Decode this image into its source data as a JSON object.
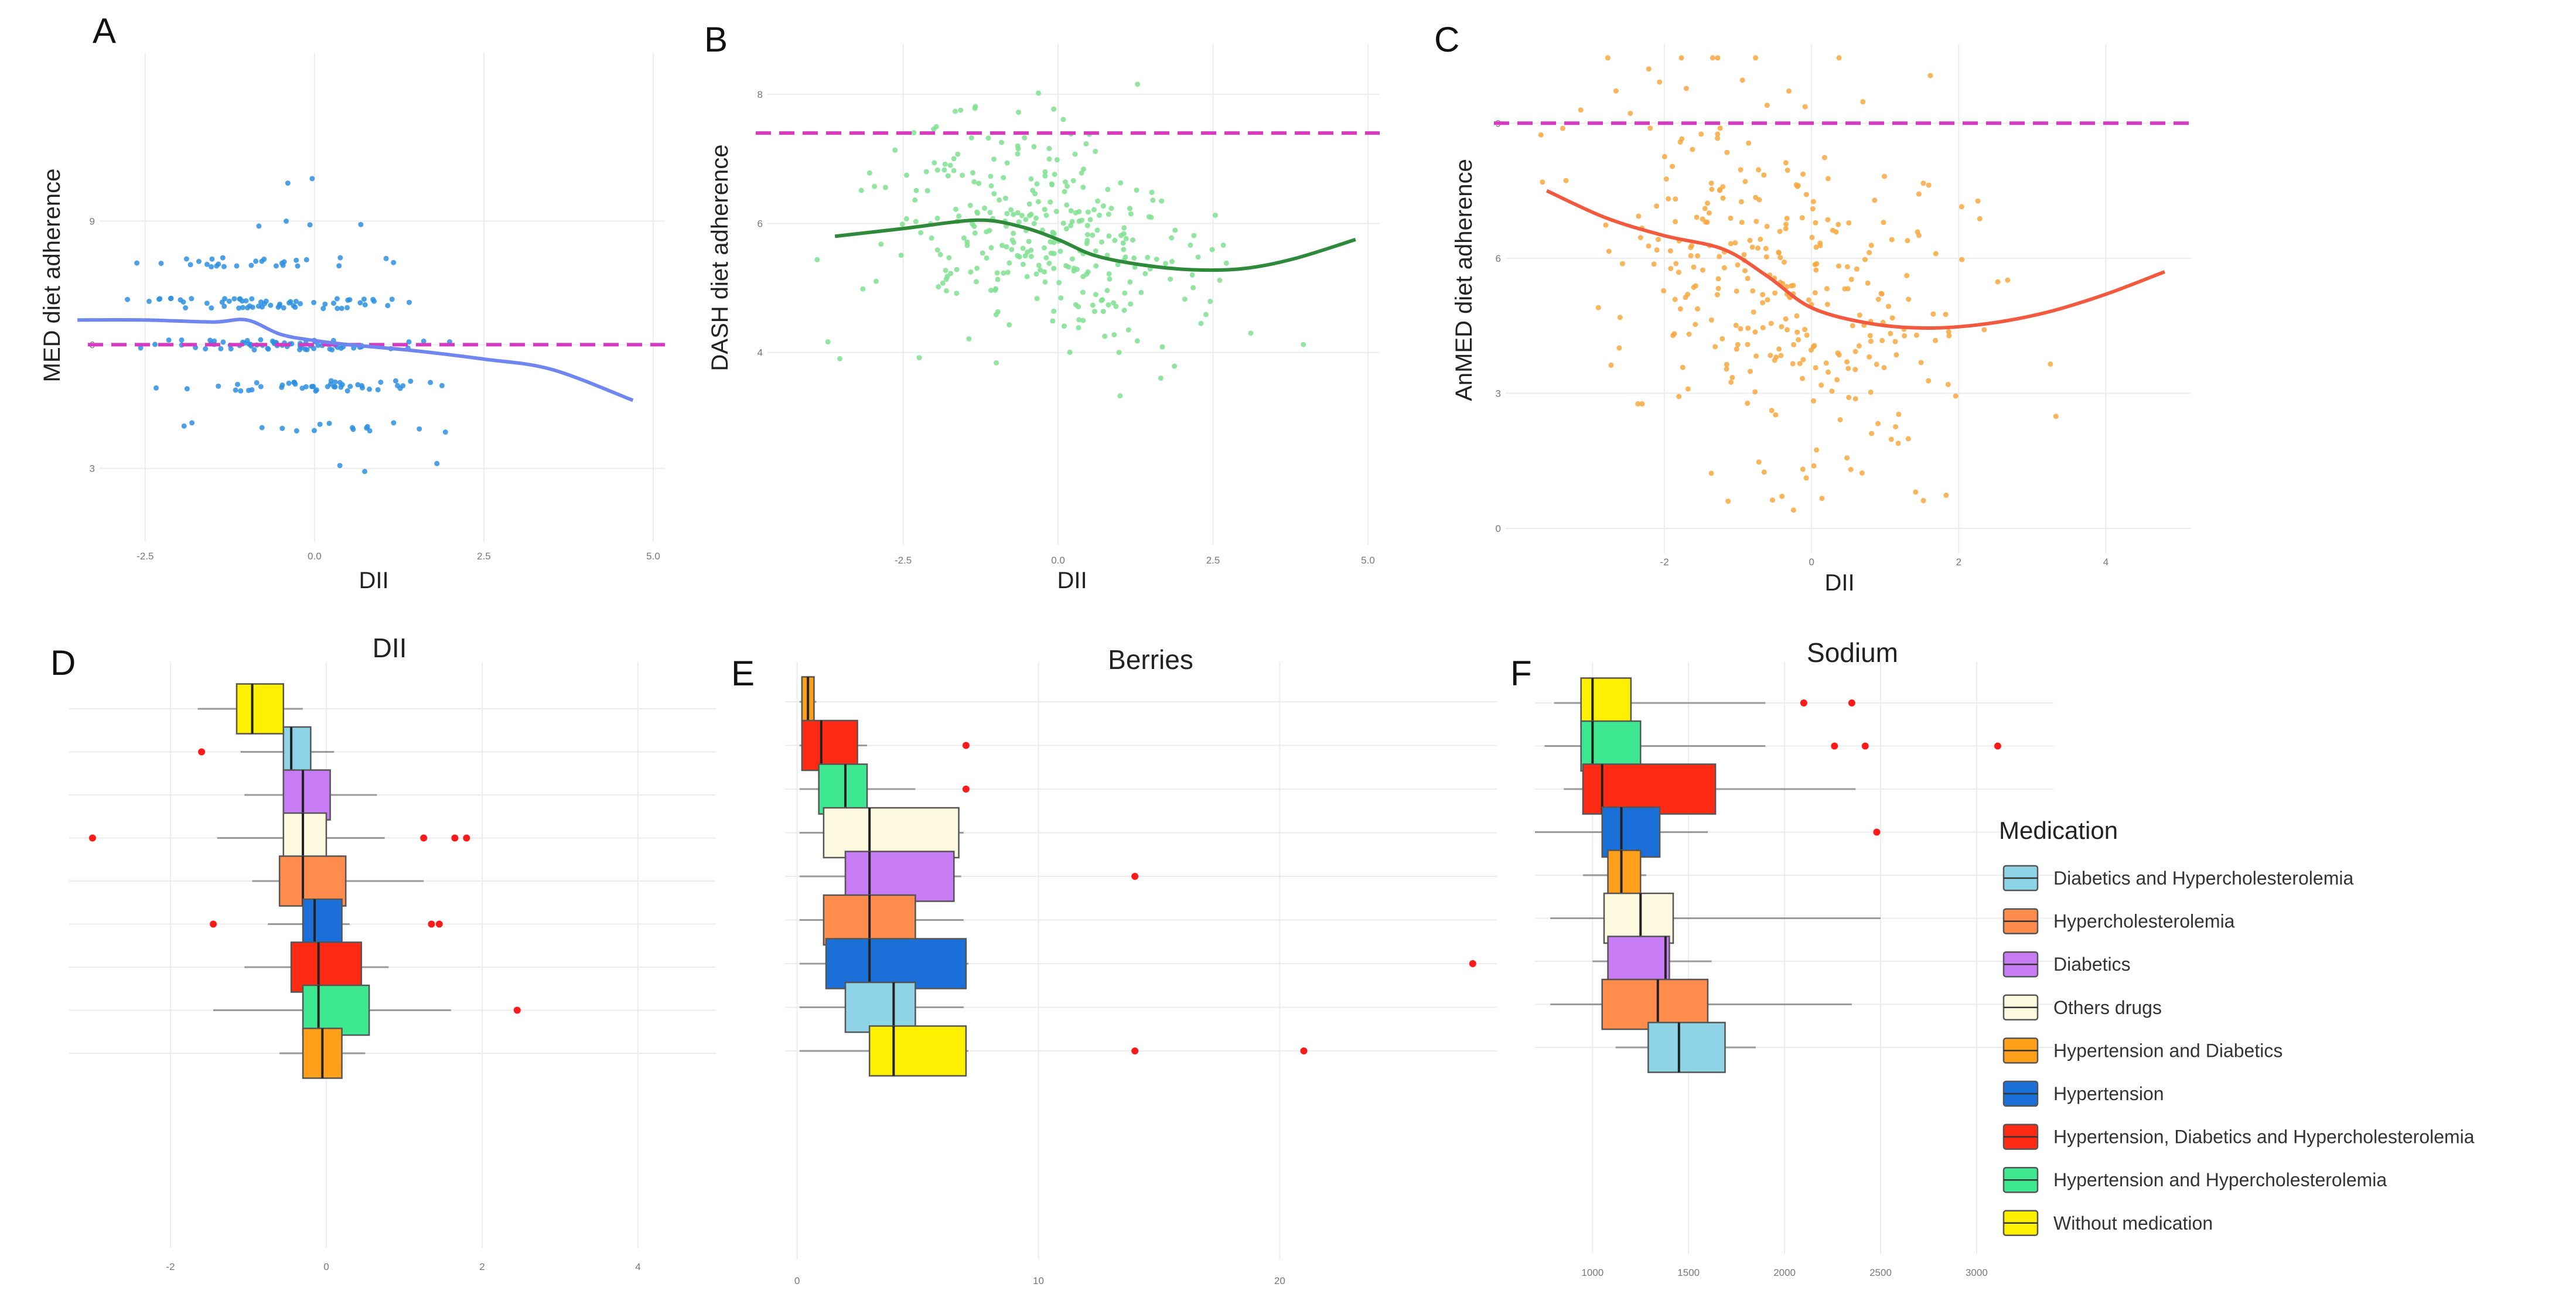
{
  "colors": {
    "ref_line": "#d63ac0",
    "A_point": "#2d8fe0",
    "A_curve": "#6f86f0",
    "B_point": "#7fe08f",
    "B_curve": "#2e8a3a",
    "C_point": "#f7a840",
    "C_curve": "#f25a3f",
    "outlier": "#ff1a1a",
    "whisker": "#9a9a9a",
    "median": "#222222"
  },
  "chart_data": [
    {
      "id": "A",
      "type": "scatter",
      "panel_letter": "A",
      "xlabel": "DII",
      "ylabel": "MED diet adherence",
      "xlim": [
        -3.0,
        5.0
      ],
      "ylim": [
        1.5,
        12.8
      ],
      "xticks": [
        -2.5,
        0.0,
        2.5,
        5.0
      ],
      "xtick_labels": [
        "-2.5",
        "0.0",
        "2.5",
        "5.0"
      ],
      "yticks": [
        3,
        6,
        9
      ],
      "ytick_labels": [
        "3",
        "6",
        "9"
      ],
      "ref_line": 6.0,
      "point_count": 230,
      "smooth_x": [
        -3.5,
        -2.5,
        -1.5,
        -1.0,
        -0.5,
        0.0,
        0.5,
        1.5,
        2.5,
        3.5,
        4.7
      ],
      "smooth_y": [
        6.6,
        6.6,
        6.55,
        6.6,
        6.25,
        6.1,
        6.0,
        5.85,
        5.65,
        5.4,
        4.65
      ]
    },
    {
      "id": "B",
      "type": "scatter",
      "panel_letter": "B",
      "xlabel": "DII",
      "ylabel": "DASH diet adherence",
      "xlim": [
        -4.5,
        5.0
      ],
      "ylim": [
        1.2,
        8.6
      ],
      "xticks": [
        -2.5,
        0.0,
        2.5,
        5.0
      ],
      "xtick_labels": [
        "-2.5",
        "0.0",
        "2.5",
        "5.0"
      ],
      "yticks": [
        4,
        6,
        8
      ],
      "ytick_labels": [
        "4",
        "6",
        "8"
      ],
      "ref_line": 7.4,
      "point_count": 320,
      "smooth_x": [
        -3.6,
        -2.5,
        -1.3,
        -0.6,
        0.0,
        0.6,
        1.4,
        2.2,
        3.0,
        3.8,
        4.8
      ],
      "smooth_y": [
        5.8,
        5.92,
        6.05,
        5.95,
        5.75,
        5.5,
        5.35,
        5.28,
        5.3,
        5.45,
        5.75
      ]
    },
    {
      "id": "C",
      "type": "scatter",
      "panel_letter": "C",
      "xlabel": "DII",
      "ylabel": "AnMED diet adherence",
      "xlim": [
        -4.0,
        5.0
      ],
      "ylim": [
        -0.3,
        10.5
      ],
      "xticks": [
        -2,
        0,
        2,
        4
      ],
      "xtick_labels": [
        "-2",
        "0",
        "2",
        "4"
      ],
      "yticks": [
        0,
        3,
        6,
        9
      ],
      "ytick_labels": [
        "0",
        "3",
        "6",
        "9"
      ],
      "ref_line": 9.0,
      "point_count": 330,
      "smooth_x": [
        -3.6,
        -2.8,
        -2.0,
        -1.2,
        -0.6,
        0.0,
        0.8,
        1.6,
        2.4,
        3.2,
        4.0,
        4.8
      ],
      "smooth_y": [
        7.5,
        6.9,
        6.5,
        6.2,
        5.6,
        4.9,
        4.55,
        4.45,
        4.55,
        4.8,
        5.2,
        5.7
      ]
    },
    {
      "id": "D",
      "type": "boxplot",
      "panel_letter": "D",
      "title": "DII",
      "xlim": [
        -3.3,
        5.0
      ],
      "xticks": [
        -2,
        0,
        2,
        4
      ],
      "xtick_labels": [
        "-2",
        "0",
        "2",
        "4"
      ],
      "boxes": [
        {
          "group": "Without medication",
          "wlo": -1.65,
          "q1": -1.15,
          "median": -0.95,
          "q3": -0.55,
          "whi": -0.3,
          "outliers": []
        },
        {
          "group": "Diabetics and Hypercholesterolemia",
          "wlo": -1.1,
          "q1": -0.55,
          "median": -0.45,
          "q3": -0.2,
          "whi": 0.1,
          "outliers": [
            -1.6
          ]
        },
        {
          "group": "Diabetics",
          "wlo": -1.05,
          "q1": -0.55,
          "median": -0.3,
          "q3": 0.05,
          "whi": 0.65,
          "outliers": []
        },
        {
          "group": "Others drugs",
          "wlo": -1.4,
          "q1": -0.55,
          "median": -0.3,
          "q3": 0.0,
          "whi": 0.75,
          "outliers": [
            -3.0,
            1.25,
            1.65,
            1.8
          ]
        },
        {
          "group": "Hypercholesterolemia",
          "wlo": -0.95,
          "q1": -0.6,
          "median": -0.3,
          "q3": 0.25,
          "whi": 1.25,
          "outliers": []
        },
        {
          "group": "Hypertension",
          "wlo": -0.75,
          "q1": -0.3,
          "median": -0.15,
          "q3": 0.2,
          "whi": 0.3,
          "outliers": [
            -1.45,
            1.35,
            1.45
          ]
        },
        {
          "group": "Hypertension, Diabetics and Hypercholesterolemia",
          "wlo": -1.05,
          "q1": -0.45,
          "median": -0.1,
          "q3": 0.45,
          "whi": 0.8,
          "outliers": []
        },
        {
          "group": "Hypertension and Hypercholesterolemia",
          "wlo": -1.45,
          "q1": -0.3,
          "median": -0.1,
          "q3": 0.55,
          "whi": 1.6,
          "outliers": [
            2.45
          ]
        },
        {
          "group": "Hypertension and Diabetics",
          "wlo": -0.6,
          "q1": -0.3,
          "median": -0.05,
          "q3": 0.2,
          "whi": 0.5,
          "outliers": []
        }
      ]
    },
    {
      "id": "E",
      "type": "boxplot",
      "panel_letter": "E",
      "title": "Berries",
      "xlim": [
        -0.5,
        29.0
      ],
      "xticks": [
        0,
        10,
        20
      ],
      "xtick_labels": [
        "0",
        "10",
        "20"
      ],
      "boxes": [
        {
          "group": "Hypertension and Diabetics",
          "wlo": 0.1,
          "q1": 0.2,
          "median": 0.45,
          "q3": 0.7,
          "whi": 0.8,
          "outliers": []
        },
        {
          "group": "Hypertension, Diabetics and Hypercholesterolemia",
          "wlo": 0.1,
          "q1": 0.2,
          "median": 1.0,
          "q3": 2.5,
          "whi": 2.9,
          "outliers": [
            7.0
          ]
        },
        {
          "group": "Hypertension and Hypercholesterolemia",
          "wlo": 0.1,
          "q1": 0.9,
          "median": 2.0,
          "q3": 2.9,
          "whi": 4.9,
          "outliers": [
            7.0
          ]
        },
        {
          "group": "Others drugs",
          "wlo": 0.1,
          "q1": 1.1,
          "median": 3.0,
          "q3": 6.7,
          "whi": 6.9,
          "outliers": []
        },
        {
          "group": "Diabetics",
          "wlo": 0.1,
          "q1": 2.0,
          "median": 3.0,
          "q3": 6.5,
          "whi": 6.8,
          "outliers": [
            14.0
          ]
        },
        {
          "group": "Hypercholesterolemia",
          "wlo": 0.1,
          "q1": 1.1,
          "median": 3.0,
          "q3": 4.9,
          "whi": 6.9,
          "outliers": []
        },
        {
          "group": "Hypertension",
          "wlo": 0.1,
          "q1": 1.2,
          "median": 3.0,
          "q3": 7.0,
          "whi": 7.1,
          "outliers": [
            28.0
          ]
        },
        {
          "group": "Diabetics and Hypercholesterolemia",
          "wlo": 0.1,
          "q1": 2.0,
          "median": 4.0,
          "q3": 4.9,
          "whi": 6.9,
          "outliers": []
        },
        {
          "group": "Without medication",
          "wlo": 0.1,
          "q1": 3.0,
          "median": 4.0,
          "q3": 7.0,
          "whi": 7.1,
          "outliers": [
            14.0,
            21.0
          ]
        }
      ]
    },
    {
      "id": "F",
      "type": "boxplot",
      "panel_letter": "F",
      "title": "Sodium",
      "xlim": [
        700,
        3400
      ],
      "xticks": [
        1000,
        1500,
        2000,
        2500,
        3000
      ],
      "xtick_labels": [
        "1000",
        "1500",
        "2000",
        "2500",
        "3000"
      ],
      "boxes": [
        {
          "group": "Without medication",
          "wlo": 800,
          "q1": 940,
          "median": 1000,
          "q3": 1200,
          "whi": 1900,
          "outliers": [
            2100,
            2350
          ]
        },
        {
          "group": "Hypertension and Hypercholesterolemia",
          "wlo": 750,
          "q1": 940,
          "median": 1000,
          "q3": 1250,
          "whi": 1900,
          "outliers": [
            2260,
            2420,
            3110
          ]
        },
        {
          "group": "Hypertension, Diabetics and Hypercholesterolemia",
          "wlo": 850,
          "q1": 950,
          "median": 1050,
          "q3": 1640,
          "whi": 2370,
          "outliers": []
        },
        {
          "group": "Hypertension",
          "wlo": 700,
          "q1": 1050,
          "median": 1150,
          "q3": 1350,
          "whi": 1600,
          "outliers": [
            2480
          ]
        },
        {
          "group": "Hypertension and Diabetics",
          "wlo": 950,
          "q1": 1080,
          "median": 1150,
          "q3": 1250,
          "whi": 1280,
          "outliers": []
        },
        {
          "group": "Others drugs",
          "wlo": 780,
          "q1": 1060,
          "median": 1250,
          "q3": 1420,
          "whi": 2500,
          "outliers": []
        },
        {
          "group": "Diabetics",
          "wlo": 1000,
          "q1": 1080,
          "median": 1380,
          "q3": 1400,
          "whi": 1620,
          "outliers": []
        },
        {
          "group": "Hypercholesterolemia",
          "wlo": 780,
          "q1": 1050,
          "median": 1340,
          "q3": 1600,
          "whi": 2350,
          "outliers": []
        },
        {
          "group": "Diabetics and Hypercholesterolemia",
          "wlo": 1120,
          "q1": 1290,
          "median": 1450,
          "q3": 1690,
          "whi": 1850,
          "outliers": []
        }
      ]
    }
  ],
  "legend": {
    "title": "Medication",
    "items": [
      {
        "label": "Diabetics and Hypercholesterolemia",
        "color": "#8fd3e6"
      },
      {
        "label": "Hypercholesterolemia",
        "color": "#ff8c4d"
      },
      {
        "label": "Diabetics",
        "color": "#c77cf5"
      },
      {
        "label": "Others drugs",
        "color": "#fdfae0"
      },
      {
        "label": "Hypertension and Diabetics",
        "color": "#ff9f1a"
      },
      {
        "label": "Hypertension",
        "color": "#1a6fd8"
      },
      {
        "label": "Hypertension, Diabetics and Hypercholesterolemia",
        "color": "#ff2a14"
      },
      {
        "label": "Hypertension and Hypercholesterolemia",
        "color": "#3de891"
      },
      {
        "label": "Without medication",
        "color": "#ffef00"
      }
    ]
  }
}
